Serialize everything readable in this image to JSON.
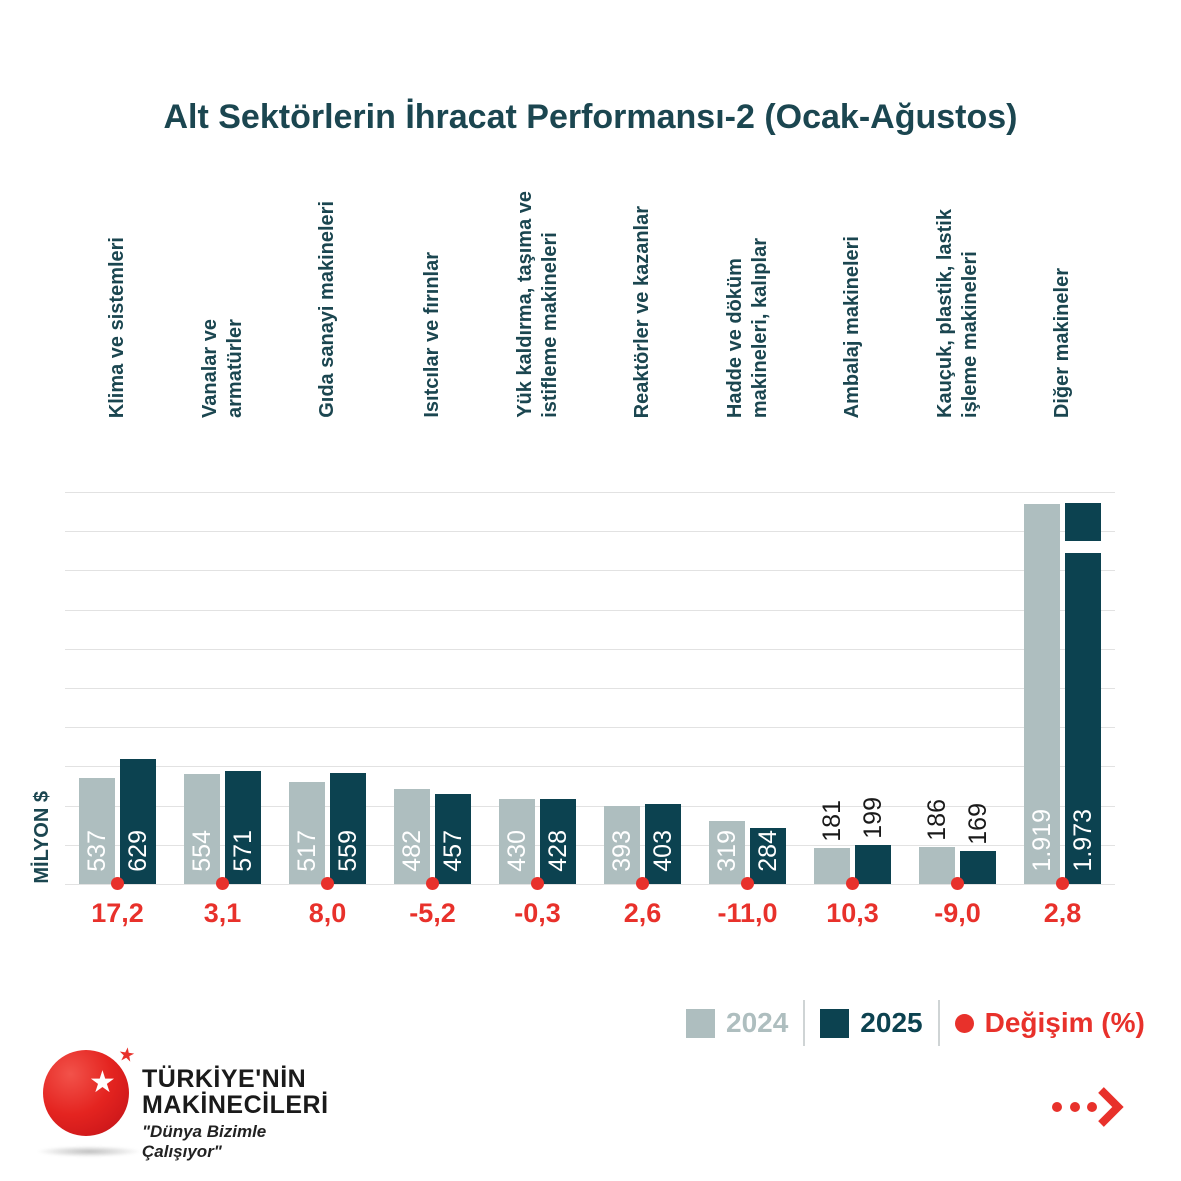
{
  "title": "Alt Sektörlerin İhracat Performansı-2 (Ocak-Ağustos)",
  "y_axis_label": "MİLYON $",
  "colors": {
    "bar_2024": "#aebebf",
    "bar_2025": "#0c4250",
    "accent_red": "#e8312b",
    "title_teal": "#1b4650",
    "grid": "#e2e2e2",
    "value_in": "#ffffff",
    "value_out": "#1a1a1a"
  },
  "legend": {
    "items": [
      {
        "label": "2024",
        "marker": "square",
        "color": "#aebebf"
      },
      {
        "label": "2025",
        "marker": "square",
        "color": "#0c4250"
      },
      {
        "label": "Değişim (%)",
        "marker": "dot",
        "color": "#e8312b"
      }
    ]
  },
  "chart_data": {
    "type": "bar",
    "title": "Alt Sektörlerin İhracat Performansı-2 (Ocak-Ağustos)",
    "ylabel": "MİLYON $",
    "ylim": [
      0,
      2000
    ],
    "gridlines": 11,
    "grid_interval_value": 200,
    "axis_break_on_values_above": 1900,
    "legend_position": "bottom-right",
    "categories": [
      {
        "name": "Klima ve sistemleri",
        "lines": [
          "Klima ve sistemleri"
        ]
      },
      {
        "name": "Vanalar ve armatürler",
        "lines": [
          "Vanalar ve",
          "armatürler"
        ]
      },
      {
        "name": "Gıda sanayi makineleri",
        "lines": [
          "Gıda sanayi makineleri"
        ]
      },
      {
        "name": "Isıtcılar ve fırınlar",
        "lines": [
          "Isıtcılar ve fırınlar"
        ]
      },
      {
        "name": "Yük kaldırma, taşıma ve istifleme makineleri",
        "lines": [
          "Yük kaldırma, taşıma ve",
          "istifleme makineleri"
        ]
      },
      {
        "name": "Reaktörler ve kazanlar",
        "lines": [
          "Reaktörler ve kazanlar"
        ]
      },
      {
        "name": "Hadde ve döküm makineleri, kalıplar",
        "lines": [
          "Hadde ve döküm",
          "makineleri, kalıplar"
        ]
      },
      {
        "name": "Ambalaj makineleri",
        "lines": [
          "Ambalaj makineleri"
        ]
      },
      {
        "name": "Kauçuk, plastik, lastik işleme makineleri",
        "lines": [
          "Kauçuk, plastik, lastik",
          "işleme makineleri"
        ]
      },
      {
        "name": "Diğer makineler",
        "lines": [
          "Diğer makineler"
        ]
      }
    ],
    "series": [
      {
        "name": "2024",
        "values": [
          537,
          554,
          517,
          482,
          430,
          393,
          319,
          181,
          186,
          1919
        ],
        "display": [
          "537",
          "554",
          "517",
          "482",
          "430",
          "393",
          "319",
          "181",
          "186",
          "1.919"
        ]
      },
      {
        "name": "2025",
        "values": [
          629,
          571,
          559,
          457,
          428,
          403,
          284,
          199,
          169,
          1973
        ],
        "display": [
          "629",
          "571",
          "559",
          "457",
          "428",
          "403",
          "284",
          "199",
          "169",
          "1.973"
        ]
      }
    ],
    "changes": [
      "17,2",
      "3,1",
      "8,0",
      "-5,2",
      "-0,3",
      "2,6",
      "-11,0",
      "10,3",
      "-9,0",
      "2,8"
    ]
  },
  "logo": {
    "line1": "TÜRKİYE'NİN",
    "line2": "MAKİNECİLERİ",
    "tagline": "\"Dünya Bizimle Çalışıyor\""
  },
  "icons": {
    "next_arrow": "dots-chevron-right"
  }
}
